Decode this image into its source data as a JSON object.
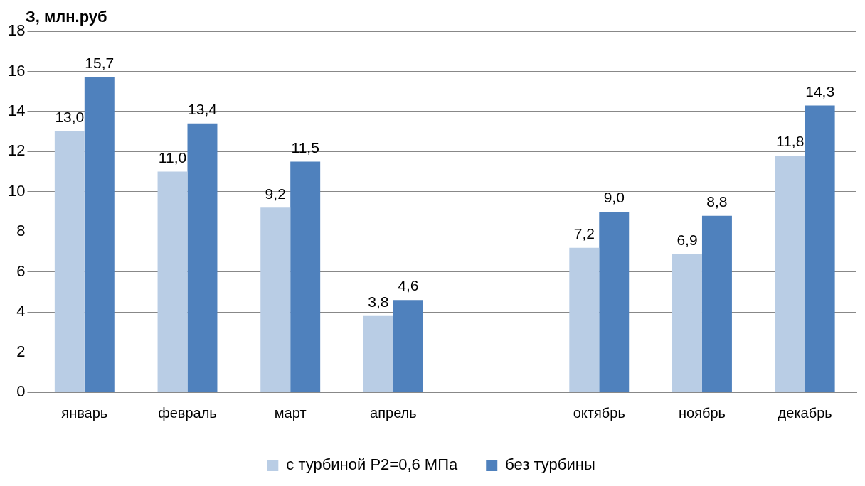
{
  "chart_data": {
    "type": "bar",
    "ylabel": "З, млн.руб",
    "categories": [
      "январь",
      "февраль",
      "март",
      "апрель",
      null,
      "октябрь",
      "ноябрь",
      "декабрь"
    ],
    "series": [
      {
        "name": "с турбиной P2=0,6 МПа",
        "color": "#b9cde5",
        "values": [
          13.0,
          11.0,
          9.2,
          3.8,
          null,
          7.2,
          6.9,
          11.8
        ],
        "value_labels": [
          "13,0",
          "11,0",
          "9,2",
          "3,8",
          null,
          "7,2",
          "6,9",
          "11,8"
        ]
      },
      {
        "name": "без турбины",
        "color": "#4f81bd",
        "values": [
          15.7,
          13.4,
          11.5,
          4.6,
          null,
          9.0,
          8.8,
          14.3
        ],
        "value_labels": [
          "15,7",
          "13,4",
          "11,5",
          "4,6",
          null,
          "9,0",
          "8,8",
          "14,3"
        ]
      }
    ],
    "ylim": [
      0,
      18
    ],
    "yticks": [
      0,
      2,
      4,
      6,
      8,
      10,
      12,
      14,
      16,
      18
    ],
    "grid": "y",
    "legend": "bottom"
  }
}
